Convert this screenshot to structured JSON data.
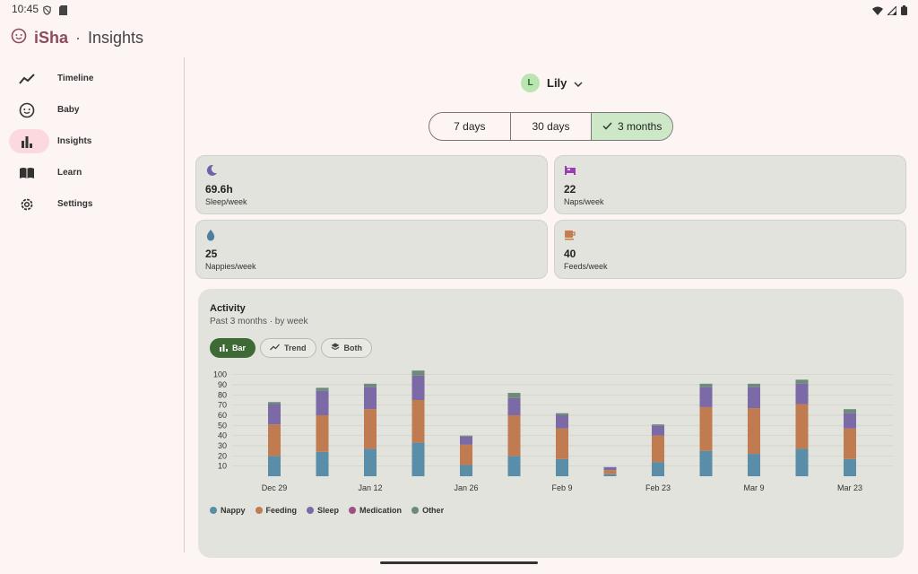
{
  "status": {
    "time": "10:45"
  },
  "app": {
    "brand": "iSha",
    "separator": "·",
    "section": "Insights"
  },
  "nav": [
    {
      "label": "Timeline",
      "icon": "trend-line-icon",
      "active": false
    },
    {
      "label": "Baby",
      "icon": "baby-face-icon",
      "active": false
    },
    {
      "label": "Insights",
      "icon": "bar-chart-icon",
      "active": true
    },
    {
      "label": "Learn",
      "icon": "book-icon",
      "active": false
    },
    {
      "label": "Settings",
      "icon": "gear-icon",
      "active": false
    }
  ],
  "child": {
    "initial": "L",
    "name": "Lily"
  },
  "range": {
    "options": [
      "7 days",
      "30 days",
      "3 months"
    ],
    "selected": "3 months"
  },
  "stats": [
    {
      "value": "69.6h",
      "caption": "Sleep/week",
      "icon": "moon-icon",
      "color": "#6f62a8"
    },
    {
      "value": "22",
      "caption": "Naps/week",
      "icon": "bed-icon",
      "color": "#9a3fb3"
    },
    {
      "value": "25",
      "caption": "Nappies/week",
      "icon": "drop-icon",
      "color": "#4c7fa0"
    },
    {
      "value": "40",
      "caption": "Feeds/week",
      "icon": "cup-icon",
      "color": "#c57c4e"
    }
  ],
  "activity": {
    "title": "Activity",
    "subtitle": "Past 3 months · by week",
    "modes": [
      "Bar",
      "Trend",
      "Both"
    ],
    "selected_mode": "Bar"
  },
  "chart_data": {
    "type": "bar",
    "stacked": true,
    "y_ticks": [
      10,
      20,
      30,
      40,
      50,
      60,
      70,
      80,
      90,
      100
    ],
    "ylim": [
      0,
      105
    ],
    "x_labels": [
      "Dec 29",
      "Jan 12",
      "Jan 26",
      "Feb 9",
      "Feb 23",
      "Mar 9",
      "Mar 23"
    ],
    "x_label_bars": [
      0,
      2,
      4,
      6,
      8,
      10,
      12
    ],
    "grid": true,
    "series": [
      {
        "name": "Nappy",
        "color": "#5a8ea8",
        "values": [
          20,
          24,
          27,
          33,
          11,
          20,
          17,
          2,
          14,
          25,
          22,
          27,
          17
        ]
      },
      {
        "name": "Feeding",
        "color": "#c07c50",
        "values": [
          31,
          36,
          39,
          42,
          20,
          40,
          30,
          4,
          26,
          43,
          45,
          44,
          30
        ]
      },
      {
        "name": "Sleep",
        "color": "#7b6aa5",
        "values": [
          20,
          24,
          22,
          24,
          8,
          17,
          13,
          3,
          10,
          20,
          21,
          20,
          15
        ]
      },
      {
        "name": "Medication",
        "color": "#a04f7e",
        "values": [
          0,
          0,
          0,
          0,
          0,
          0,
          0,
          0,
          0,
          0,
          0,
          0,
          0
        ]
      },
      {
        "name": "Other",
        "color": "#6d8a7a",
        "values": [
          2,
          3,
          3,
          5,
          1,
          5,
          2,
          0,
          1,
          3,
          3,
          4,
          4
        ]
      }
    ]
  }
}
